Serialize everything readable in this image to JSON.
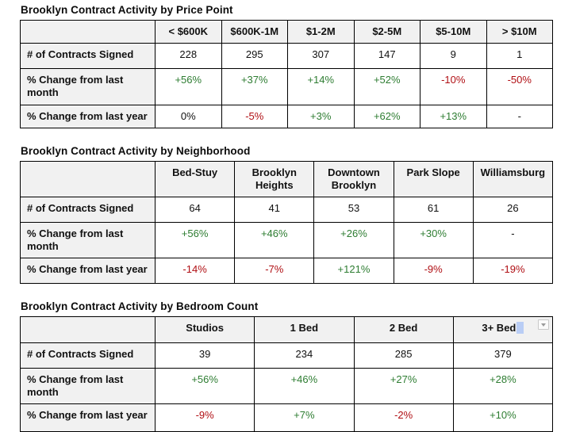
{
  "colors": {
    "positive": "#2e7d32",
    "negative": "#b00f14",
    "header_background": "#f1f1f1",
    "border": "#000000",
    "selection_highlight": "#b9cdf5"
  },
  "tables": [
    {
      "title": "Brooklyn Contract Activity by Price Point",
      "columns": [
        "< $600K",
        "$600K-1M",
        "$1-2M",
        "$2-5M",
        "$5-10M",
        "> $10M"
      ],
      "rows": [
        {
          "label": "# of Contracts Signed",
          "cells": [
            {
              "text": "228",
              "tone": "flat"
            },
            {
              "text": "295",
              "tone": "flat"
            },
            {
              "text": "307",
              "tone": "flat"
            },
            {
              "text": "147",
              "tone": "flat"
            },
            {
              "text": "9",
              "tone": "flat"
            },
            {
              "text": "1",
              "tone": "flat"
            }
          ]
        },
        {
          "label": "% Change from last month",
          "cells": [
            {
              "text": "+56%",
              "tone": "up"
            },
            {
              "text": "+37%",
              "tone": "up"
            },
            {
              "text": "+14%",
              "tone": "up"
            },
            {
              "text": "+52%",
              "tone": "up"
            },
            {
              "text": "-10%",
              "tone": "down"
            },
            {
              "text": "-50%",
              "tone": "down"
            }
          ]
        },
        {
          "label": "% Change from last year",
          "cells": [
            {
              "text": "0%",
              "tone": "flat"
            },
            {
              "text": "-5%",
              "tone": "down"
            },
            {
              "text": "+3%",
              "tone": "up"
            },
            {
              "text": "+62%",
              "tone": "up"
            },
            {
              "text": "+13%",
              "tone": "up"
            },
            {
              "text": "-",
              "tone": "flat"
            }
          ]
        }
      ]
    },
    {
      "title": "Brooklyn Contract Activity by Neighborhood",
      "columns": [
        "Bed-Stuy",
        "Brooklyn Heights",
        "Downtown Brooklyn",
        "Park Slope",
        "Williamsburg"
      ],
      "rows": [
        {
          "label": "# of Contracts Signed",
          "cells": [
            {
              "text": "64",
              "tone": "flat"
            },
            {
              "text": "41",
              "tone": "flat"
            },
            {
              "text": "53",
              "tone": "flat"
            },
            {
              "text": "61",
              "tone": "flat"
            },
            {
              "text": "26",
              "tone": "flat"
            }
          ]
        },
        {
          "label": "% Change from last month",
          "cells": [
            {
              "text": "+56%",
              "tone": "up"
            },
            {
              "text": "+46%",
              "tone": "up"
            },
            {
              "text": "+26%",
              "tone": "up"
            },
            {
              "text": "+30%",
              "tone": "up"
            },
            {
              "text": "-",
              "tone": "flat"
            }
          ]
        },
        {
          "label": "% Change from last year",
          "cells": [
            {
              "text": "-14%",
              "tone": "down"
            },
            {
              "text": "-7%",
              "tone": "down"
            },
            {
              "text": "+121%",
              "tone": "up"
            },
            {
              "text": "-9%",
              "tone": "down"
            },
            {
              "text": "-19%",
              "tone": "down"
            }
          ]
        }
      ]
    },
    {
      "title": "Brooklyn Contract Activity by Bedroom Count",
      "columns": [
        "Studios",
        "1 Bed",
        "2 Bed",
        "3+ Bed"
      ],
      "active_header": {
        "column_index": 3,
        "selection_highlight": true,
        "dropdown_icon": "chevron-down-icon"
      },
      "rows": [
        {
          "label": "# of Contracts Signed",
          "cells": [
            {
              "text": "39",
              "tone": "flat"
            },
            {
              "text": "234",
              "tone": "flat"
            },
            {
              "text": "285",
              "tone": "flat"
            },
            {
              "text": "379",
              "tone": "flat"
            }
          ]
        },
        {
          "label": "% Change from last month",
          "cells": [
            {
              "text": "+56%",
              "tone": "up"
            },
            {
              "text": "+46%",
              "tone": "up"
            },
            {
              "text": "+27%",
              "tone": "up"
            },
            {
              "text": "+28%",
              "tone": "up"
            }
          ]
        },
        {
          "label": "% Change from last year",
          "cells": [
            {
              "text": "-9%",
              "tone": "down"
            },
            {
              "text": "+7%",
              "tone": "up"
            },
            {
              "text": "-2%",
              "tone": "down"
            },
            {
              "text": "+10%",
              "tone": "up"
            }
          ]
        }
      ]
    }
  ]
}
